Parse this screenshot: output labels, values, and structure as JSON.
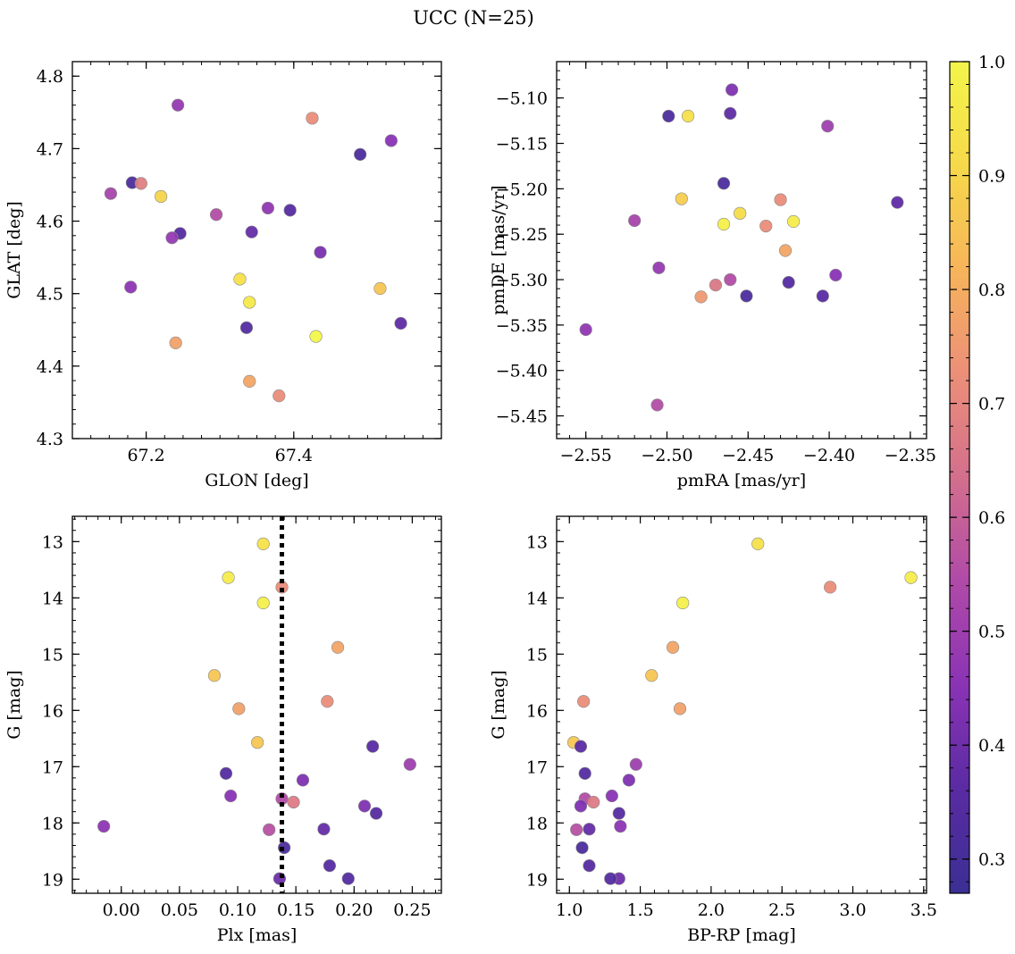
{
  "figure": {
    "title": "UCC (N=25)"
  },
  "colorbar": {
    "min": 0.27,
    "max": 1.0,
    "ticks": [
      "0.3",
      "0.4",
      "0.5",
      "0.6",
      "0.7",
      "0.8",
      "0.9",
      "1.0"
    ],
    "tick_values": [
      0.3,
      0.4,
      0.5,
      0.6,
      0.7,
      0.8,
      0.9,
      1.0
    ],
    "colormap": "plasma",
    "stops": [
      "#3b2f94",
      "#5a2ba3",
      "#8a33b5",
      "#b04aa8",
      "#d36f8d",
      "#ec8f78",
      "#f7b45a",
      "#f6d94a",
      "#f3f54a"
    ]
  },
  "chart_data": [
    {
      "type": "scatter",
      "id": "glon-glat",
      "xlabel": "GLON [deg]",
      "ylabel": "GLAT [deg]",
      "xlim": [
        67.1,
        67.6
      ],
      "ylim": [
        4.3,
        4.82
      ],
      "invert_y": false,
      "xticks": [
        67.2,
        67.4
      ],
      "xtick_labels": [
        "67.2",
        "67.4"
      ],
      "yticks": [
        4.3,
        4.4,
        4.5,
        4.6,
        4.7,
        4.8
      ],
      "ytick_labels": [
        "4.3",
        "4.4",
        "4.5",
        "4.6",
        "4.7",
        "4.8"
      ],
      "x_minor_step": 0.025,
      "y_minor_step": 0.02,
      "points": [
        {
          "x": 67.243,
          "y": 4.76,
          "c": 0.48
        },
        {
          "x": 67.425,
          "y": 4.742,
          "c": 0.72
        },
        {
          "x": 67.532,
          "y": 4.711,
          "c": 0.45
        },
        {
          "x": 67.49,
          "y": 4.692,
          "c": 0.32
        },
        {
          "x": 67.152,
          "y": 4.638,
          "c": 0.52
        },
        {
          "x": 67.181,
          "y": 4.653,
          "c": 0.32
        },
        {
          "x": 67.193,
          "y": 4.652,
          "c": 0.68
        },
        {
          "x": 67.22,
          "y": 4.634,
          "c": 0.9
        },
        {
          "x": 67.295,
          "y": 4.609,
          "c": 0.55
        },
        {
          "x": 67.365,
          "y": 4.618,
          "c": 0.47
        },
        {
          "x": 67.395,
          "y": 4.615,
          "c": 0.35
        },
        {
          "x": 67.246,
          "y": 4.583,
          "c": 0.35
        },
        {
          "x": 67.235,
          "y": 4.577,
          "c": 0.48
        },
        {
          "x": 67.343,
          "y": 4.585,
          "c": 0.38
        },
        {
          "x": 67.436,
          "y": 4.557,
          "c": 0.42
        },
        {
          "x": 67.179,
          "y": 4.509,
          "c": 0.46
        },
        {
          "x": 67.327,
          "y": 4.52,
          "c": 0.93
        },
        {
          "x": 67.517,
          "y": 4.507,
          "c": 0.86
        },
        {
          "x": 67.34,
          "y": 4.488,
          "c": 0.96
        },
        {
          "x": 67.336,
          "y": 4.453,
          "c": 0.34
        },
        {
          "x": 67.545,
          "y": 4.459,
          "c": 0.37
        },
        {
          "x": 67.43,
          "y": 4.441,
          "c": 1.0
        },
        {
          "x": 67.24,
          "y": 4.432,
          "c": 0.77
        },
        {
          "x": 67.34,
          "y": 4.379,
          "c": 0.78
        },
        {
          "x": 67.38,
          "y": 4.359,
          "c": 0.72
        }
      ]
    },
    {
      "type": "scatter",
      "id": "pmra-pmde",
      "xlabel": "pmRA [mas/yr]",
      "ylabel": "pmDE [mas/yr]",
      "xlim": [
        -2.568,
        -2.34
      ],
      "ylim": [
        -5.475,
        -5.06
      ],
      "invert_y": false,
      "xticks": [
        -2.55,
        -2.5,
        -2.45,
        -2.4,
        -2.35
      ],
      "xtick_labels": [
        "−2.55",
        "−2.50",
        "−2.45",
        "−2.40",
        "−2.35"
      ],
      "yticks": [
        -5.45,
        -5.4,
        -5.35,
        -5.3,
        -5.25,
        -5.2,
        -5.15,
        -5.1
      ],
      "ytick_labels": [
        "−5.45",
        "−5.40",
        "−5.35",
        "−5.30",
        "−5.25",
        "−5.20",
        "−5.15",
        "−5.10"
      ],
      "x_minor_step": 0.01,
      "y_minor_step": 0.01,
      "points": [
        {
          "x": -2.46,
          "y": -5.091,
          "c": 0.43
        },
        {
          "x": -2.499,
          "y": -5.12,
          "c": 0.32
        },
        {
          "x": -2.487,
          "y": -5.12,
          "c": 0.93
        },
        {
          "x": -2.461,
          "y": -5.117,
          "c": 0.37
        },
        {
          "x": -2.401,
          "y": -5.131,
          "c": 0.5
        },
        {
          "x": -2.465,
          "y": -5.194,
          "c": 0.32
        },
        {
          "x": -2.358,
          "y": -5.215,
          "c": 0.37
        },
        {
          "x": -2.491,
          "y": -5.211,
          "c": 0.88
        },
        {
          "x": -2.43,
          "y": -5.212,
          "c": 0.72
        },
        {
          "x": -2.455,
          "y": -5.227,
          "c": 0.92
        },
        {
          "x": -2.52,
          "y": -5.235,
          "c": 0.52
        },
        {
          "x": -2.422,
          "y": -5.236,
          "c": 0.97
        },
        {
          "x": -2.465,
          "y": -5.239,
          "c": 0.98
        },
        {
          "x": -2.439,
          "y": -5.241,
          "c": 0.72
        },
        {
          "x": -2.427,
          "y": -5.268,
          "c": 0.78
        },
        {
          "x": -2.505,
          "y": -5.287,
          "c": 0.48
        },
        {
          "x": -2.396,
          "y": -5.295,
          "c": 0.45
        },
        {
          "x": -2.461,
          "y": -5.3,
          "c": 0.55
        },
        {
          "x": -2.425,
          "y": -5.303,
          "c": 0.34
        },
        {
          "x": -2.47,
          "y": -5.306,
          "c": 0.66
        },
        {
          "x": -2.479,
          "y": -5.319,
          "c": 0.75
        },
        {
          "x": -2.451,
          "y": -5.318,
          "c": 0.32
        },
        {
          "x": -2.404,
          "y": -5.318,
          "c": 0.36
        },
        {
          "x": -2.55,
          "y": -5.355,
          "c": 0.47
        },
        {
          "x": -2.506,
          "y": -5.438,
          "c": 0.55
        }
      ]
    },
    {
      "type": "scatter",
      "id": "plx-g",
      "xlabel": "Plx [mas]",
      "ylabel": "G [mag]",
      "xlim": [
        -0.042,
        0.275
      ],
      "ylim": [
        12.55,
        19.25
      ],
      "invert_y": true,
      "vline": 0.138,
      "xticks": [
        0.0,
        0.05,
        0.1,
        0.15,
        0.2,
        0.25
      ],
      "xtick_labels": [
        "0.00",
        "0.05",
        "0.10",
        "0.15",
        "0.20",
        "0.25"
      ],
      "yticks": [
        13,
        14,
        15,
        16,
        17,
        18,
        19
      ],
      "ytick_labels": [
        "13",
        "14",
        "15",
        "16",
        "17",
        "18",
        "19"
      ],
      "x_minor_step": 0.01,
      "y_minor_step": 0.2,
      "points": [
        {
          "x": 0.122,
          "y": 13.04,
          "c": 0.93
        },
        {
          "x": 0.092,
          "y": 13.64,
          "c": 0.97
        },
        {
          "x": 0.138,
          "y": 13.81,
          "c": 0.72
        },
        {
          "x": 0.122,
          "y": 14.09,
          "c": 0.98
        },
        {
          "x": 0.186,
          "y": 14.88,
          "c": 0.78
        },
        {
          "x": 0.08,
          "y": 15.38,
          "c": 0.86
        },
        {
          "x": 0.177,
          "y": 15.84,
          "c": 0.72
        },
        {
          "x": 0.101,
          "y": 15.97,
          "c": 0.77
        },
        {
          "x": 0.117,
          "y": 16.57,
          "c": 0.86
        },
        {
          "x": 0.216,
          "y": 16.64,
          "c": 0.36
        },
        {
          "x": 0.248,
          "y": 16.96,
          "c": 0.5
        },
        {
          "x": 0.09,
          "y": 17.12,
          "c": 0.34
        },
        {
          "x": 0.156,
          "y": 17.24,
          "c": 0.43
        },
        {
          "x": 0.094,
          "y": 17.52,
          "c": 0.45
        },
        {
          "x": 0.138,
          "y": 17.57,
          "c": 0.55
        },
        {
          "x": 0.148,
          "y": 17.63,
          "c": 0.67
        },
        {
          "x": 0.209,
          "y": 17.7,
          "c": 0.43
        },
        {
          "x": 0.219,
          "y": 17.83,
          "c": 0.35
        },
        {
          "x": -0.015,
          "y": 18.06,
          "c": 0.46
        },
        {
          "x": 0.174,
          "y": 18.11,
          "c": 0.38
        },
        {
          "x": 0.127,
          "y": 18.12,
          "c": 0.56
        },
        {
          "x": 0.14,
          "y": 18.44,
          "c": 0.32
        },
        {
          "x": 0.179,
          "y": 18.76,
          "c": 0.35
        },
        {
          "x": 0.136,
          "y": 18.99,
          "c": 0.4
        },
        {
          "x": 0.195,
          "y": 18.99,
          "c": 0.34
        }
      ]
    },
    {
      "type": "scatter",
      "id": "bprp-g",
      "xlabel": "BP-RP [mag]",
      "ylabel": "G [mag]",
      "xlim": [
        0.91,
        3.52
      ],
      "ylim": [
        12.55,
        19.25
      ],
      "invert_y": true,
      "xticks": [
        1.0,
        1.5,
        2.0,
        2.5,
        3.0,
        3.5
      ],
      "xtick_labels": [
        "1.0",
        "1.5",
        "2.0",
        "2.5",
        "3.0",
        "3.5"
      ],
      "yticks": [
        13,
        14,
        15,
        16,
        17,
        18,
        19
      ],
      "ytick_labels": [
        "13",
        "14",
        "15",
        "16",
        "17",
        "18",
        "19"
      ],
      "x_minor_step": 0.1,
      "y_minor_step": 0.2,
      "points": [
        {
          "x": 2.33,
          "y": 13.04,
          "c": 0.93
        },
        {
          "x": 3.41,
          "y": 13.64,
          "c": 0.97
        },
        {
          "x": 2.84,
          "y": 13.81,
          "c": 0.72
        },
        {
          "x": 1.8,
          "y": 14.09,
          "c": 0.98
        },
        {
          "x": 1.73,
          "y": 14.88,
          "c": 0.78
        },
        {
          "x": 1.58,
          "y": 15.38,
          "c": 0.86
        },
        {
          "x": 1.1,
          "y": 15.84,
          "c": 0.72
        },
        {
          "x": 1.78,
          "y": 15.97,
          "c": 0.77
        },
        {
          "x": 1.03,
          "y": 16.57,
          "c": 0.86
        },
        {
          "x": 1.08,
          "y": 16.64,
          "c": 0.36
        },
        {
          "x": 1.47,
          "y": 16.96,
          "c": 0.5
        },
        {
          "x": 1.11,
          "y": 17.12,
          "c": 0.34
        },
        {
          "x": 1.42,
          "y": 17.24,
          "c": 0.43
        },
        {
          "x": 1.3,
          "y": 17.52,
          "c": 0.45
        },
        {
          "x": 1.11,
          "y": 17.57,
          "c": 0.55
        },
        {
          "x": 1.17,
          "y": 17.63,
          "c": 0.67
        },
        {
          "x": 1.08,
          "y": 17.7,
          "c": 0.43
        },
        {
          "x": 1.35,
          "y": 17.83,
          "c": 0.35
        },
        {
          "x": 1.36,
          "y": 18.06,
          "c": 0.46
        },
        {
          "x": 1.14,
          "y": 18.11,
          "c": 0.38
        },
        {
          "x": 1.05,
          "y": 18.12,
          "c": 0.56
        },
        {
          "x": 1.09,
          "y": 18.44,
          "c": 0.32
        },
        {
          "x": 1.14,
          "y": 18.76,
          "c": 0.35
        },
        {
          "x": 1.35,
          "y": 18.99,
          "c": 0.4
        },
        {
          "x": 1.29,
          "y": 18.99,
          "c": 0.34
        }
      ]
    }
  ]
}
